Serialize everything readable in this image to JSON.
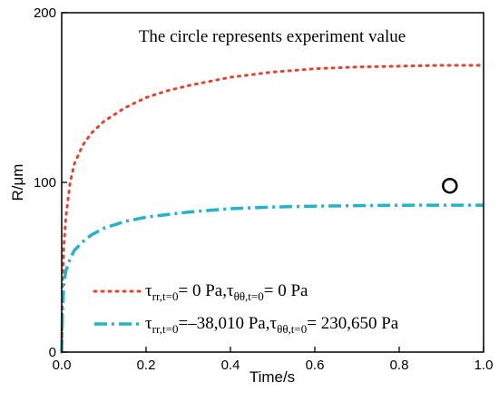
{
  "chart_data": {
    "type": "line",
    "xlabel": "Time/s",
    "ylabel": "R/μm",
    "xlim": [
      0,
      1.0
    ],
    "ylim": [
      0,
      200
    ],
    "x_ticks": [
      "0.0",
      "0.2",
      "0.4",
      "0.6",
      "0.8",
      "1.0"
    ],
    "y_ticks": [
      "0",
      "100",
      "200"
    ],
    "annotation": "The circle represents experiment value",
    "series": [
      {
        "color": "#e8412e",
        "style": "dotted",
        "x": [
          0,
          0.002,
          0.005,
          0.01,
          0.02,
          0.03,
          0.05,
          0.07,
          0.1,
          0.15,
          0.2,
          0.25,
          0.3,
          0.4,
          0.5,
          0.6,
          0.7,
          0.8,
          0.9,
          1.0
        ],
        "values": [
          0,
          40,
          62,
          80,
          100,
          111,
          122,
          129,
          136,
          144,
          150,
          154,
          157,
          162,
          165,
          167,
          168,
          168.5,
          169,
          169
        ],
        "legend": {
          "tau": "τ",
          "sub1": "rr,t=0",
          "mid1": "=  0 Pa,",
          "tau2": "τ",
          "sub2": "θθ,t=0",
          "end": "= 0 Pa"
        }
      },
      {
        "color": "#22b5c8",
        "style": "dashdot",
        "x": [
          0,
          0.002,
          0.005,
          0.01,
          0.02,
          0.03,
          0.05,
          0.07,
          0.1,
          0.15,
          0.2,
          0.3,
          0.4,
          0.5,
          0.6,
          0.7,
          0.8,
          0.9,
          1.0
        ],
        "values": [
          0,
          25,
          40,
          48,
          55,
          60,
          65,
          69,
          73,
          77,
          79.5,
          82.5,
          84.5,
          85.5,
          86,
          86.3,
          86.5,
          86.6,
          86.6
        ],
        "legend": {
          "tau": "τ",
          "sub1": "rr,t=0",
          "mid1": "=–38,010 Pa,",
          "tau2": "τ",
          "sub2": "θθ,t=0",
          "end": "= 230,650 Pa"
        }
      }
    ],
    "experiment_point": {
      "x": 0.92,
      "y": 98
    }
  }
}
